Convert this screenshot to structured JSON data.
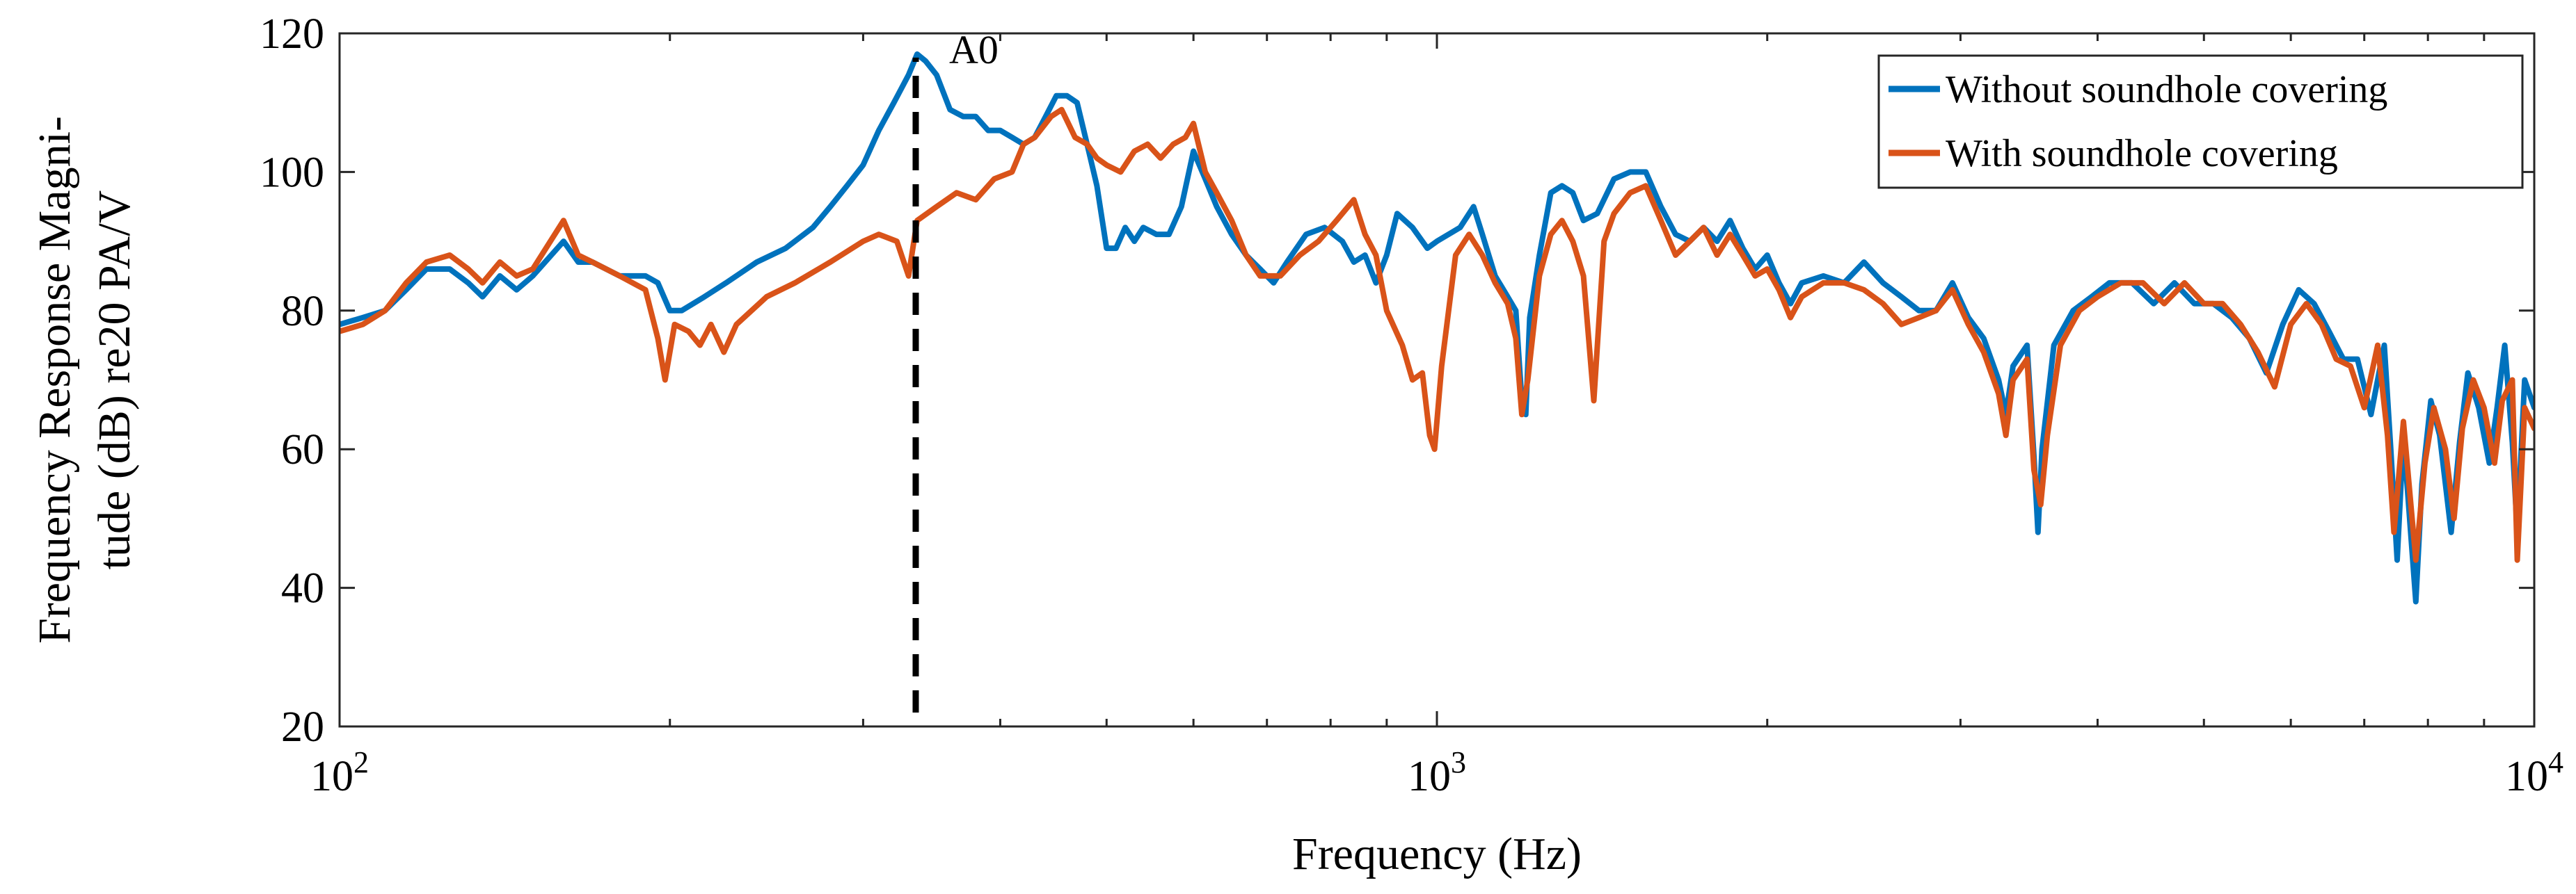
{
  "chart_data": {
    "type": "line",
    "title": "",
    "xlabel": "Frequency (Hz)",
    "ylabel_lines": [
      "Frequency Response Magni-",
      "tude (dB) re20 PA/V"
    ],
    "xscale": "log",
    "xlim": [
      100,
      10000
    ],
    "ylim": [
      20,
      120
    ],
    "grid": false,
    "legend_position": "top-right",
    "x_ticks": [
      {
        "value": 100,
        "base": "10",
        "exp": "2"
      },
      {
        "value": 1000,
        "base": "10",
        "exp": "3"
      },
      {
        "value": 10000,
        "base": "10",
        "exp": "4"
      }
    ],
    "y_ticks": [
      {
        "value": 20,
        "label": "20"
      },
      {
        "value": 40,
        "label": "40"
      },
      {
        "value": 60,
        "label": "60"
      },
      {
        "value": 80,
        "label": "80"
      },
      {
        "value": 100,
        "label": "100"
      },
      {
        "value": 120,
        "label": "120"
      }
    ],
    "annotation": {
      "label": "A0",
      "x": 335,
      "y_from": 22,
      "y_to": 116.5,
      "style": "dashed",
      "color": "#000000"
    },
    "series": [
      {
        "name": "Without soundhole covering",
        "color": "#0072BD",
        "points": [
          [
            100,
            78
          ],
          [
            105,
            79
          ],
          [
            110,
            80
          ],
          [
            115,
            83
          ],
          [
            120,
            86
          ],
          [
            126,
            86
          ],
          [
            131,
            84
          ],
          [
            135,
            82
          ],
          [
            140,
            85
          ],
          [
            145,
            83
          ],
          [
            150,
            85
          ],
          [
            160,
            90
          ],
          [
            165,
            87
          ],
          [
            170,
            87
          ],
          [
            180,
            85
          ],
          [
            190,
            85
          ],
          [
            195,
            84
          ],
          [
            200,
            80
          ],
          [
            205,
            80
          ],
          [
            215,
            82
          ],
          [
            225,
            84
          ],
          [
            240,
            87
          ],
          [
            255,
            89
          ],
          [
            270,
            92
          ],
          [
            280,
            95
          ],
          [
            290,
            98
          ],
          [
            300,
            101
          ],
          [
            310,
            106
          ],
          [
            320,
            110
          ],
          [
            330,
            114
          ],
          [
            336,
            117
          ],
          [
            342,
            116
          ],
          [
            350,
            114
          ],
          [
            360,
            109
          ],
          [
            370,
            108
          ],
          [
            380,
            108
          ],
          [
            390,
            106
          ],
          [
            400,
            106
          ],
          [
            410,
            105
          ],
          [
            420,
            104
          ],
          [
            430,
            105
          ],
          [
            440,
            108
          ],
          [
            450,
            111
          ],
          [
            460,
            111
          ],
          [
            470,
            110
          ],
          [
            480,
            104
          ],
          [
            490,
            98
          ],
          [
            500,
            89
          ],
          [
            510,
            89
          ],
          [
            520,
            92
          ],
          [
            530,
            90
          ],
          [
            540,
            92
          ],
          [
            555,
            91
          ],
          [
            570,
            91
          ],
          [
            585,
            95
          ],
          [
            600,
            103
          ],
          [
            615,
            99
          ],
          [
            630,
            95
          ],
          [
            650,
            91
          ],
          [
            670,
            88
          ],
          [
            690,
            86
          ],
          [
            710,
            84
          ],
          [
            730,
            87
          ],
          [
            760,
            91
          ],
          [
            790,
            92
          ],
          [
            820,
            90
          ],
          [
            840,
            87
          ],
          [
            860,
            88
          ],
          [
            880,
            84
          ],
          [
            900,
            88
          ],
          [
            920,
            94
          ],
          [
            950,
            92
          ],
          [
            980,
            89
          ],
          [
            1000,
            90
          ],
          [
            1050,
            92
          ],
          [
            1080,
            95
          ],
          [
            1100,
            91
          ],
          [
            1130,
            85
          ],
          [
            1160,
            82
          ],
          [
            1180,
            80
          ],
          [
            1195,
            67
          ],
          [
            1205,
            65
          ],
          [
            1215,
            79
          ],
          [
            1240,
            88
          ],
          [
            1270,
            97
          ],
          [
            1300,
            98
          ],
          [
            1330,
            97
          ],
          [
            1360,
            93
          ],
          [
            1400,
            94
          ],
          [
            1450,
            99
          ],
          [
            1500,
            100
          ],
          [
            1550,
            100
          ],
          [
            1600,
            95
          ],
          [
            1650,
            91
          ],
          [
            1700,
            90
          ],
          [
            1750,
            92
          ],
          [
            1800,
            90
          ],
          [
            1850,
            93
          ],
          [
            1900,
            89
          ],
          [
            1950,
            86
          ],
          [
            2000,
            88
          ],
          [
            2050,
            84
          ],
          [
            2100,
            81
          ],
          [
            2150,
            84
          ],
          [
            2250,
            85
          ],
          [
            2350,
            84
          ],
          [
            2450,
            87
          ],
          [
            2550,
            84
          ],
          [
            2650,
            82
          ],
          [
            2750,
            80
          ],
          [
            2850,
            80
          ],
          [
            2950,
            84
          ],
          [
            3050,
            79
          ],
          [
            3150,
            76
          ],
          [
            3250,
            70
          ],
          [
            3300,
            65
          ],
          [
            3350,
            72
          ],
          [
            3450,
            75
          ],
          [
            3500,
            59
          ],
          [
            3530,
            48
          ],
          [
            3560,
            60
          ],
          [
            3650,
            75
          ],
          [
            3800,
            80
          ],
          [
            3950,
            82
          ],
          [
            4100,
            84
          ],
          [
            4300,
            84
          ],
          [
            4500,
            81
          ],
          [
            4700,
            84
          ],
          [
            4900,
            81
          ],
          [
            5100,
            81
          ],
          [
            5300,
            79
          ],
          [
            5500,
            76
          ],
          [
            5700,
            71
          ],
          [
            5900,
            78
          ],
          [
            6100,
            83
          ],
          [
            6300,
            81
          ],
          [
            6500,
            77
          ],
          [
            6700,
            73
          ],
          [
            6900,
            73
          ],
          [
            7100,
            65
          ],
          [
            7300,
            75
          ],
          [
            7400,
            60
          ],
          [
            7500,
            44
          ],
          [
            7600,
            62
          ],
          [
            7800,
            38
          ],
          [
            7900,
            55
          ],
          [
            8050,
            67
          ],
          [
            8200,
            62
          ],
          [
            8400,
            48
          ],
          [
            8550,
            61
          ],
          [
            8700,
            71
          ],
          [
            8900,
            66
          ],
          [
            9100,
            58
          ],
          [
            9250,
            66
          ],
          [
            9400,
            75
          ],
          [
            9550,
            61
          ],
          [
            9650,
            48
          ],
          [
            9800,
            70
          ],
          [
            10000,
            66
          ]
        ]
      },
      {
        "name": "With soundhole covering",
        "color": "#D95319",
        "points": [
          [
            100,
            77
          ],
          [
            105,
            78
          ],
          [
            110,
            80
          ],
          [
            115,
            84
          ],
          [
            120,
            87
          ],
          [
            126,
            88
          ],
          [
            131,
            86
          ],
          [
            135,
            84
          ],
          [
            140,
            87
          ],
          [
            145,
            85
          ],
          [
            150,
            86
          ],
          [
            160,
            93
          ],
          [
            165,
            88
          ],
          [
            170,
            87
          ],
          [
            180,
            85
          ],
          [
            190,
            83
          ],
          [
            195,
            76
          ],
          [
            198,
            70
          ],
          [
            202,
            78
          ],
          [
            208,
            77
          ],
          [
            213,
            75
          ],
          [
            218,
            78
          ],
          [
            224,
            74
          ],
          [
            230,
            78
          ],
          [
            245,
            82
          ],
          [
            260,
            84
          ],
          [
            280,
            87
          ],
          [
            300,
            90
          ],
          [
            310,
            91
          ],
          [
            322,
            90
          ],
          [
            330,
            85
          ],
          [
            336,
            93
          ],
          [
            350,
            95
          ],
          [
            365,
            97
          ],
          [
            380,
            96
          ],
          [
            395,
            99
          ],
          [
            410,
            100
          ],
          [
            420,
            104
          ],
          [
            430,
            105
          ],
          [
            445,
            108
          ],
          [
            455,
            109
          ],
          [
            468,
            105
          ],
          [
            480,
            104
          ],
          [
            490,
            102
          ],
          [
            500,
            101
          ],
          [
            515,
            100
          ],
          [
            530,
            103
          ],
          [
            545,
            104
          ],
          [
            560,
            102
          ],
          [
            575,
            104
          ],
          [
            590,
            105
          ],
          [
            600,
            107
          ],
          [
            615,
            100
          ],
          [
            630,
            97
          ],
          [
            650,
            93
          ],
          [
            670,
            88
          ],
          [
            690,
            85
          ],
          [
            720,
            85
          ],
          [
            750,
            88
          ],
          [
            780,
            90
          ],
          [
            810,
            93
          ],
          [
            840,
            96
          ],
          [
            860,
            91
          ],
          [
            880,
            88
          ],
          [
            900,
            80
          ],
          [
            930,
            75
          ],
          [
            950,
            70
          ],
          [
            970,
            71
          ],
          [
            985,
            62
          ],
          [
            995,
            60
          ],
          [
            1010,
            72
          ],
          [
            1040,
            88
          ],
          [
            1070,
            91
          ],
          [
            1100,
            88
          ],
          [
            1130,
            84
          ],
          [
            1160,
            81
          ],
          [
            1180,
            76
          ],
          [
            1195,
            65
          ],
          [
            1210,
            70
          ],
          [
            1240,
            85
          ],
          [
            1270,
            91
          ],
          [
            1300,
            93
          ],
          [
            1330,
            90
          ],
          [
            1360,
            85
          ],
          [
            1390,
            67
          ],
          [
            1420,
            90
          ],
          [
            1450,
            94
          ],
          [
            1500,
            97
          ],
          [
            1550,
            98
          ],
          [
            1600,
            93
          ],
          [
            1650,
            88
          ],
          [
            1700,
            90
          ],
          [
            1750,
            92
          ],
          [
            1800,
            88
          ],
          [
            1850,
            91
          ],
          [
            1900,
            88
          ],
          [
            1950,
            85
          ],
          [
            2000,
            86
          ],
          [
            2050,
            83
          ],
          [
            2100,
            79
          ],
          [
            2150,
            82
          ],
          [
            2250,
            84
          ],
          [
            2350,
            84
          ],
          [
            2450,
            83
          ],
          [
            2550,
            81
          ],
          [
            2650,
            78
          ],
          [
            2750,
            79
          ],
          [
            2850,
            80
          ],
          [
            2950,
            83
          ],
          [
            3050,
            78
          ],
          [
            3150,
            74
          ],
          [
            3250,
            68
          ],
          [
            3300,
            62
          ],
          [
            3350,
            70
          ],
          [
            3450,
            73
          ],
          [
            3500,
            57
          ],
          [
            3550,
            52
          ],
          [
            3600,
            62
          ],
          [
            3700,
            75
          ],
          [
            3850,
            80
          ],
          [
            4000,
            82
          ],
          [
            4200,
            84
          ],
          [
            4400,
            84
          ],
          [
            4600,
            81
          ],
          [
            4800,
            84
          ],
          [
            5000,
            81
          ],
          [
            5200,
            81
          ],
          [
            5400,
            78
          ],
          [
            5600,
            74
          ],
          [
            5800,
            69
          ],
          [
            6000,
            78
          ],
          [
            6200,
            81
          ],
          [
            6400,
            78
          ],
          [
            6600,
            73
          ],
          [
            6800,
            72
          ],
          [
            7000,
            66
          ],
          [
            7200,
            75
          ],
          [
            7350,
            62
          ],
          [
            7450,
            48
          ],
          [
            7600,
            64
          ],
          [
            7800,
            44
          ],
          [
            7950,
            58
          ],
          [
            8100,
            66
          ],
          [
            8300,
            60
          ],
          [
            8450,
            50
          ],
          [
            8600,
            63
          ],
          [
            8800,
            70
          ],
          [
            9000,
            66
          ],
          [
            9200,
            58
          ],
          [
            9350,
            67
          ],
          [
            9550,
            70
          ],
          [
            9650,
            44
          ],
          [
            9800,
            66
          ],
          [
            10000,
            63
          ]
        ]
      }
    ]
  }
}
